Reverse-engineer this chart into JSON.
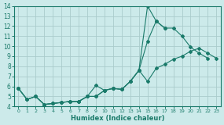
{
  "xlabel": "Humidex (Indice chaleur)",
  "bg_color": "#cceaea",
  "grid_color": "#aacccc",
  "line_color": "#1a7a6a",
  "xlim": [
    -0.5,
    23.5
  ],
  "ylim": [
    4,
    14
  ],
  "xticks": [
    0,
    1,
    2,
    3,
    4,
    5,
    6,
    7,
    8,
    9,
    10,
    11,
    12,
    13,
    14,
    15,
    16,
    17,
    18,
    19,
    20,
    21,
    22,
    23
  ],
  "yticks": [
    4,
    5,
    6,
    7,
    8,
    9,
    10,
    11,
    12,
    13,
    14
  ],
  "line1_x": [
    0,
    1,
    2,
    3,
    4,
    5,
    6,
    7,
    8,
    9,
    10,
    11,
    12,
    13,
    14,
    15,
    16,
    17,
    18,
    19,
    20,
    21,
    22
  ],
  "line1_y": [
    5.8,
    4.7,
    5.0,
    4.2,
    4.3,
    4.4,
    4.5,
    4.5,
    5.0,
    6.1,
    5.6,
    5.8,
    5.7,
    6.5,
    7.6,
    14.0,
    12.5,
    11.8,
    11.8,
    11.0,
    9.9,
    9.3,
    8.8
  ],
  "line2_x": [
    0,
    1,
    2,
    3,
    4,
    5,
    6,
    7,
    8,
    9,
    10,
    11,
    12,
    13,
    14,
    15,
    16,
    17
  ],
  "line2_y": [
    5.8,
    4.7,
    5.0,
    4.2,
    4.3,
    4.4,
    4.5,
    4.5,
    5.0,
    5.0,
    5.6,
    5.8,
    5.7,
    6.5,
    7.6,
    10.5,
    12.5,
    11.8
  ],
  "line3_x": [
    0,
    1,
    2,
    3,
    4,
    5,
    6,
    7,
    8,
    9,
    10,
    11,
    12,
    13,
    14,
    15,
    16,
    17,
    18,
    19,
    20,
    21,
    22,
    23
  ],
  "line3_y": [
    5.8,
    4.7,
    5.0,
    4.2,
    4.3,
    4.4,
    4.5,
    4.5,
    5.0,
    5.0,
    5.6,
    5.8,
    5.7,
    6.5,
    7.6,
    6.5,
    7.8,
    8.2,
    8.7,
    9.0,
    9.5,
    9.8,
    9.3,
    8.8
  ]
}
